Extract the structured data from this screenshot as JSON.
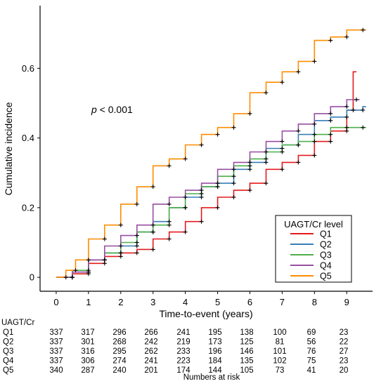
{
  "chart_data": {
    "type": "line",
    "title": "",
    "xlabel": "Time-to-event (years)",
    "ylabel": "Cumulative incidence",
    "xlim": [
      -0.5,
      9.8
    ],
    "ylim": [
      -0.04,
      0.78
    ],
    "x_ticks": [
      "0",
      "1",
      "2",
      "3",
      "4",
      "5",
      "6",
      "7",
      "8",
      "9"
    ],
    "y_ticks": [
      "0",
      "0.2",
      "0.4",
      "0.6"
    ],
    "p_value": {
      "italic": "p",
      "rest": " < 0.001"
    },
    "legend": {
      "title": "UAGT/Cr level",
      "position": "bottom-right"
    },
    "series": [
      {
        "name": "Q1",
        "color": "#E41A1C",
        "points": [
          [
            0,
            0
          ],
          [
            0.5,
            0.01
          ],
          [
            1,
            0.04
          ],
          [
            1.5,
            0.06
          ],
          [
            2,
            0.07
          ],
          [
            2.5,
            0.08
          ],
          [
            3,
            0.11
          ],
          [
            3.5,
            0.13
          ],
          [
            4,
            0.16
          ],
          [
            4.5,
            0.2
          ],
          [
            5,
            0.23
          ],
          [
            5.5,
            0.25
          ],
          [
            6,
            0.27
          ],
          [
            6.5,
            0.31
          ],
          [
            7,
            0.33
          ],
          [
            7.5,
            0.35
          ],
          [
            8,
            0.39
          ],
          [
            8.5,
            0.42
          ],
          [
            9,
            0.48
          ],
          [
            9.2,
            0.59
          ]
        ]
      },
      {
        "name": "Q2",
        "color": "#377EB8",
        "points": [
          [
            0,
            0
          ],
          [
            0.5,
            0.015
          ],
          [
            1,
            0.05
          ],
          [
            1.5,
            0.07
          ],
          [
            2,
            0.09
          ],
          [
            2.5,
            0.13
          ],
          [
            3,
            0.16
          ],
          [
            3.5,
            0.2
          ],
          [
            4,
            0.23
          ],
          [
            4.5,
            0.26
          ],
          [
            5,
            0.27
          ],
          [
            5.5,
            0.31
          ],
          [
            6,
            0.33
          ],
          [
            6.5,
            0.37
          ],
          [
            7,
            0.38
          ],
          [
            7.5,
            0.41
          ],
          [
            8,
            0.45
          ],
          [
            8.5,
            0.46
          ],
          [
            9,
            0.48
          ],
          [
            9.5,
            0.49
          ]
        ]
      },
      {
        "name": "Q3",
        "color": "#4DAF4A",
        "points": [
          [
            0,
            0
          ],
          [
            0.5,
            0.02
          ],
          [
            1,
            0.05
          ],
          [
            1.5,
            0.07
          ],
          [
            2,
            0.1
          ],
          [
            2.5,
            0.13
          ],
          [
            3,
            0.15
          ],
          [
            3.5,
            0.2
          ],
          [
            4,
            0.24
          ],
          [
            4.5,
            0.26
          ],
          [
            5,
            0.29
          ],
          [
            5.5,
            0.32
          ],
          [
            6,
            0.34
          ],
          [
            6.5,
            0.36
          ],
          [
            7,
            0.38
          ],
          [
            7.5,
            0.39
          ],
          [
            8,
            0.41
          ],
          [
            8.5,
            0.43
          ],
          [
            9,
            0.43
          ],
          [
            9.5,
            0.43
          ]
        ]
      },
      {
        "name": "Q4",
        "color": "#984EA3",
        "points": [
          [
            0,
            0
          ],
          [
            0.5,
            0.015
          ],
          [
            1,
            0.05
          ],
          [
            1.5,
            0.09
          ],
          [
            2,
            0.12
          ],
          [
            2.5,
            0.15
          ],
          [
            3,
            0.21
          ],
          [
            3.5,
            0.23
          ],
          [
            4,
            0.25
          ],
          [
            4.5,
            0.27
          ],
          [
            5,
            0.31
          ],
          [
            5.5,
            0.33
          ],
          [
            6,
            0.36
          ],
          [
            6.5,
            0.39
          ],
          [
            7,
            0.42
          ],
          [
            7.5,
            0.44
          ],
          [
            8,
            0.47
          ],
          [
            8.5,
            0.49
          ],
          [
            9,
            0.51
          ],
          [
            9.3,
            0.51
          ]
        ]
      },
      {
        "name": "Q5",
        "color": "#FF8C00",
        "points": [
          [
            0,
            0
          ],
          [
            0.3,
            0.02
          ],
          [
            0.6,
            0.05
          ],
          [
            1,
            0.11
          ],
          [
            1.5,
            0.15
          ],
          [
            2,
            0.21
          ],
          [
            2.5,
            0.26
          ],
          [
            3,
            0.32
          ],
          [
            3.5,
            0.34
          ],
          [
            4,
            0.38
          ],
          [
            4.5,
            0.41
          ],
          [
            5,
            0.43
          ],
          [
            5.5,
            0.47
          ],
          [
            6,
            0.53
          ],
          [
            6.5,
            0.56
          ],
          [
            7,
            0.59
          ],
          [
            7.5,
            0.62
          ],
          [
            8,
            0.68
          ],
          [
            8.5,
            0.69
          ],
          [
            9,
            0.71
          ],
          [
            9.5,
            0.71
          ]
        ]
      }
    ]
  },
  "risk_table": {
    "header": "UAGT/Cr",
    "footer": "Numbers at risk",
    "rows": [
      {
        "label": "Q1",
        "values": [
          "337",
          "317",
          "296",
          "266",
          "241",
          "195",
          "138",
          "100",
          "69",
          "23"
        ]
      },
      {
        "label": "Q2",
        "values": [
          "337",
          "301",
          "268",
          "242",
          "219",
          "173",
          "125",
          "81",
          "56",
          "22"
        ]
      },
      {
        "label": "Q3",
        "values": [
          "337",
          "316",
          "295",
          "262",
          "233",
          "196",
          "146",
          "101",
          "76",
          "27"
        ]
      },
      {
        "label": "Q4",
        "values": [
          "337",
          "306",
          "274",
          "241",
          "223",
          "184",
          "135",
          "102",
          "75",
          "23"
        ]
      },
      {
        "label": "Q5",
        "values": [
          "340",
          "287",
          "240",
          "201",
          "174",
          "144",
          "105",
          "73",
          "41",
          "20"
        ]
      }
    ]
  }
}
